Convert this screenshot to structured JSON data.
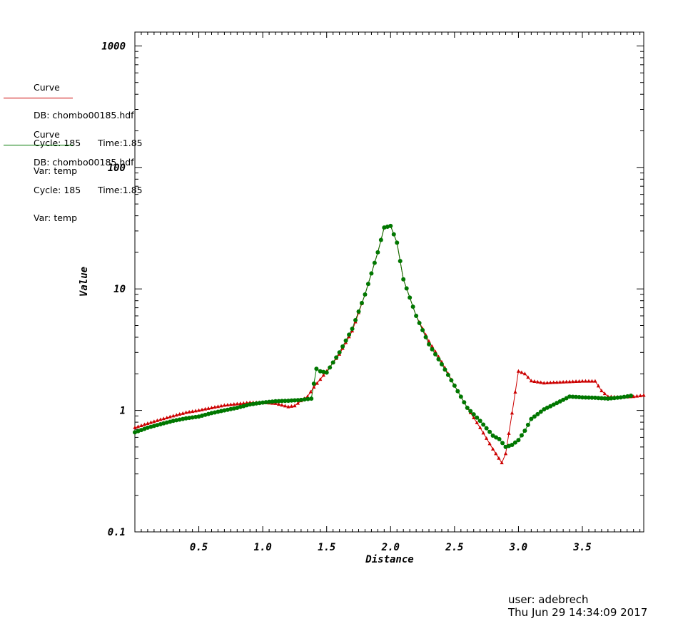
{
  "legend": [
    {
      "label": "Curve",
      "db": "DB: chombo00185.hdf",
      "cycle": "Cycle: 185",
      "time": "Time:1.85",
      "var": "Var: temp",
      "color": "#cc0000"
    },
    {
      "label": "Curve",
      "db": "DB: chombo00185.hdf",
      "cycle": "Cycle: 185",
      "time": "Time:1.85",
      "var": "Var: temp",
      "color": "#007700"
    }
  ],
  "footer": {
    "user": "user: adebrech",
    "date": "Thu Jun 29 14:34:09 2017"
  },
  "chart_data": {
    "type": "line",
    "xlabel": "Distance",
    "ylabel": "Value",
    "yscale": "log",
    "xlim": [
      0.0,
      3.98
    ],
    "ylim": [
      0.1,
      1300
    ],
    "x_ticks": [
      0.5,
      1.0,
      1.5,
      2.0,
      2.5,
      3.0,
      3.5
    ],
    "x_tick_labels": [
      "0.5",
      "1.0",
      "1.5",
      "2.0",
      "2.5",
      "3.0",
      "3.5"
    ],
    "y_ticks": [
      0.1,
      1,
      10,
      100,
      1000
    ],
    "y_tick_labels": [
      "0.1",
      "1",
      "10",
      "100",
      "1000"
    ],
    "grid": false,
    "series": [
      {
        "color": "#cc0000",
        "marker": "triangle",
        "x": [
          0.0,
          0.1,
          0.2,
          0.3,
          0.4,
          0.5,
          0.6,
          0.7,
          0.8,
          0.9,
          1.0,
          1.1,
          1.2,
          1.25,
          1.3,
          1.35,
          1.4,
          1.45,
          1.5,
          1.6,
          1.7,
          1.8,
          1.9,
          1.95,
          2.0,
          2.05,
          2.1,
          2.2,
          2.3,
          2.4,
          2.5,
          2.6,
          2.7,
          2.8,
          2.87,
          2.9,
          2.95,
          3.0,
          3.05,
          3.1,
          3.2,
          3.3,
          3.4,
          3.5,
          3.6,
          3.65,
          3.7,
          3.8,
          3.9,
          3.98
        ],
        "y": [
          0.72,
          0.78,
          0.84,
          0.9,
          0.96,
          1.0,
          1.05,
          1.1,
          1.13,
          1.16,
          1.16,
          1.14,
          1.07,
          1.09,
          1.2,
          1.3,
          1.55,
          1.8,
          2.1,
          2.9,
          4.5,
          9.0,
          20.0,
          32.0,
          33.0,
          24.0,
          12.0,
          6.0,
          3.7,
          2.5,
          1.6,
          1.05,
          0.72,
          0.48,
          0.37,
          0.44,
          0.95,
          2.1,
          2.0,
          1.75,
          1.68,
          1.7,
          1.72,
          1.74,
          1.74,
          1.45,
          1.3,
          1.28,
          1.3,
          1.33
        ]
      },
      {
        "color": "#007700",
        "marker": "circle",
        "x": [
          0.0,
          0.1,
          0.2,
          0.3,
          0.4,
          0.5,
          0.6,
          0.7,
          0.8,
          0.9,
          1.0,
          1.1,
          1.2,
          1.3,
          1.38,
          1.42,
          1.45,
          1.5,
          1.6,
          1.7,
          1.8,
          1.9,
          1.95,
          2.0,
          2.05,
          2.1,
          2.2,
          2.3,
          2.4,
          2.5,
          2.6,
          2.7,
          2.8,
          2.85,
          2.9,
          2.95,
          3.0,
          3.05,
          3.1,
          3.2,
          3.3,
          3.4,
          3.5,
          3.6,
          3.7,
          3.8,
          3.88
        ],
        "y": [
          0.66,
          0.72,
          0.77,
          0.82,
          0.86,
          0.89,
          0.95,
          1.0,
          1.05,
          1.12,
          1.16,
          1.19,
          1.2,
          1.22,
          1.25,
          2.2,
          2.1,
          2.05,
          3.0,
          4.7,
          9.0,
          20.0,
          32.0,
          33.0,
          24.0,
          12.0,
          6.0,
          3.5,
          2.4,
          1.6,
          1.05,
          0.82,
          0.62,
          0.58,
          0.5,
          0.52,
          0.57,
          0.68,
          0.85,
          1.02,
          1.15,
          1.3,
          1.28,
          1.27,
          1.25,
          1.28,
          1.32
        ]
      }
    ]
  }
}
